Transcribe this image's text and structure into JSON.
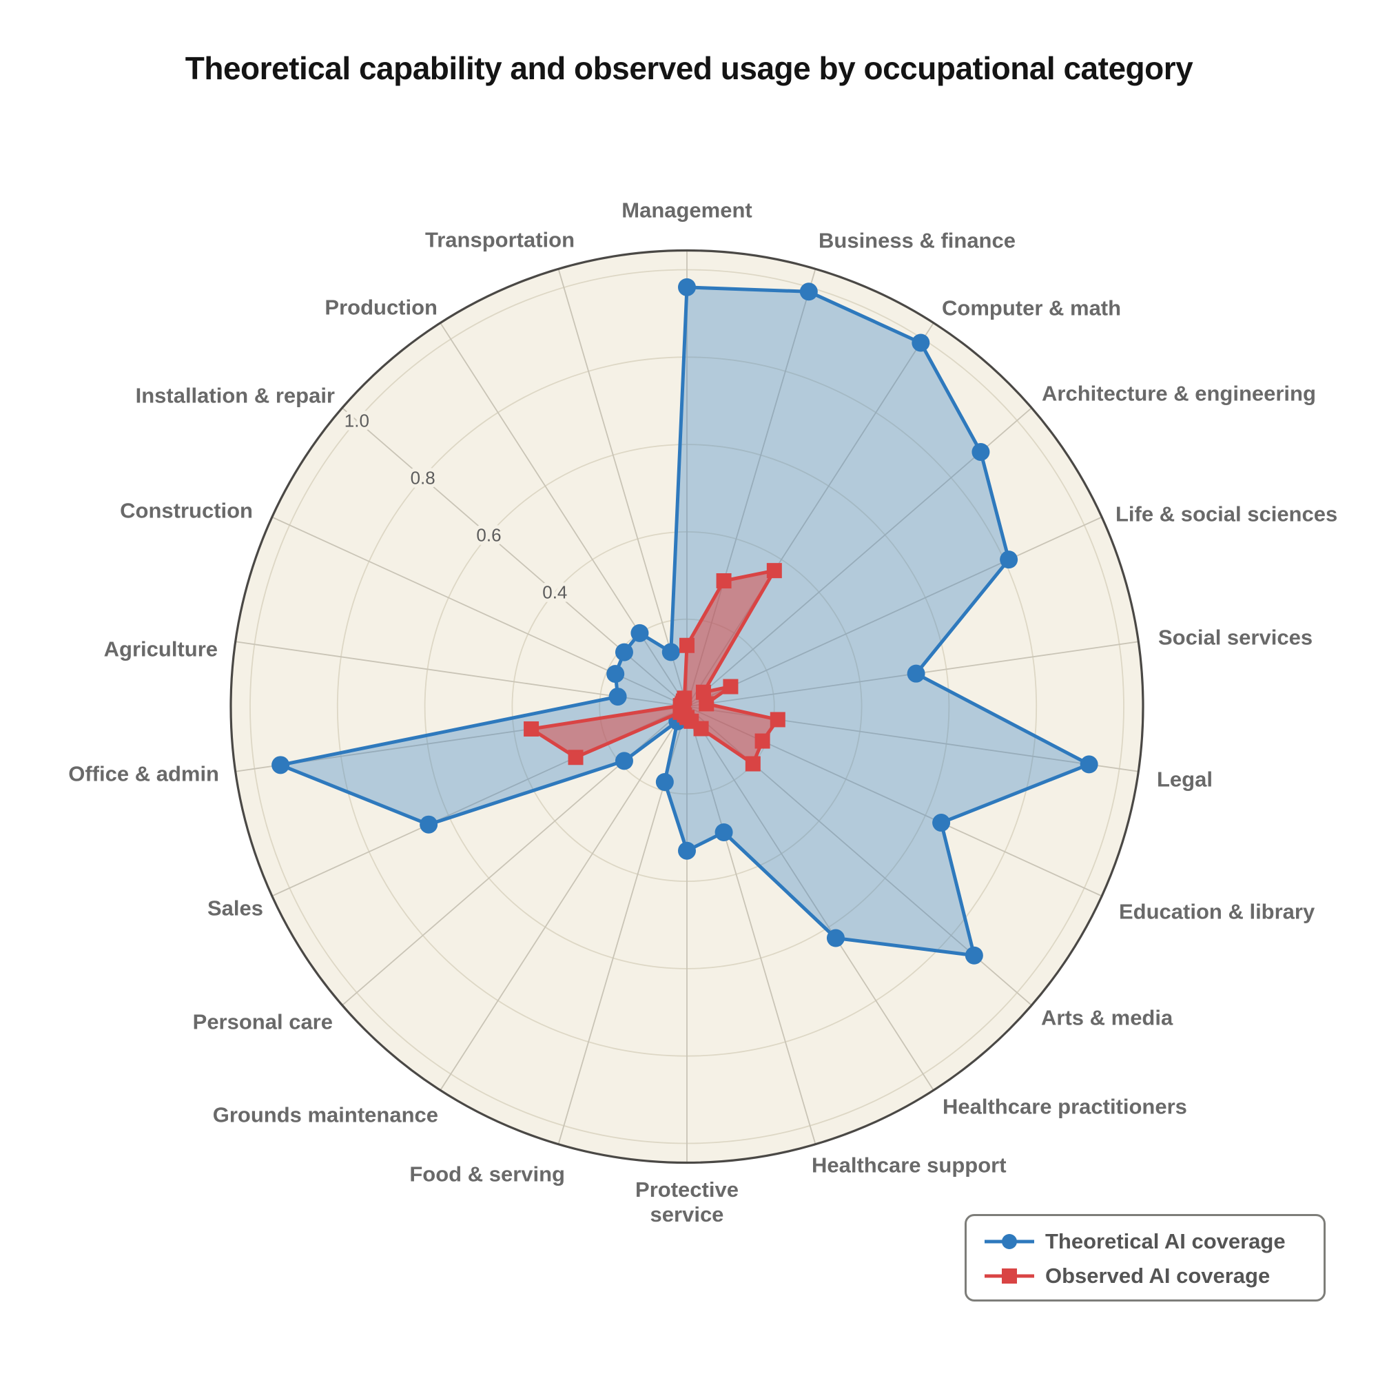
{
  "title": "Theoretical capability and observed usage by occupational category",
  "chart_data": {
    "type": "radar",
    "categories": [
      "Management",
      "Business & finance",
      "Computer & math",
      "Architecture & engineering",
      "Life & social sciences",
      "Social services",
      "Legal",
      "Education & library",
      "Arts & media",
      "Healthcare practitioners",
      "Healthcare support",
      "Protective\nservice",
      "Food & serving",
      "Grounds maintenance",
      "Personal care",
      "Sales",
      "Office & admin",
      "Agriculture",
      "Construction",
      "Installation & repair",
      "Production",
      "Transportation"
    ],
    "series": [
      {
        "name": "Theoretical AI coverage",
        "marker": "circle",
        "color": "#2e79bd",
        "fill": "rgba(58,128,195,0.35)",
        "values": [
          0.96,
          0.99,
          0.99,
          0.89,
          0.81,
          0.53,
          0.93,
          0.64,
          0.87,
          0.63,
          0.3,
          0.33,
          0.18,
          0.04,
          0.19,
          0.65,
          0.94,
          0.16,
          0.18,
          0.19,
          0.2,
          0.13
        ]
      },
      {
        "name": "Observed AI coverage",
        "marker": "square",
        "color": "#d94444",
        "fill": "rgba(219,68,63,0.50)",
        "values": [
          0.14,
          0.3,
          0.37,
          0.05,
          0.11,
          0.045,
          0.21,
          0.19,
          0.2,
          0.06,
          0.035,
          0.025,
          0.02,
          0.015,
          0.02,
          0.28,
          0.36,
          0.015,
          0.012,
          0.012,
          0.015,
          0.02
        ]
      }
    ],
    "rmin": 0,
    "rmax": 1.045,
    "grid_values": [
      0.2,
      0.4,
      0.6,
      0.8,
      1.0
    ],
    "radial_ticks": [
      0.4,
      0.6,
      0.8,
      1.0
    ],
    "radial_tick_labels": [
      "0.4",
      "0.6",
      "0.8",
      "1.0"
    ],
    "grid_on": true,
    "legend_position": "bottom-right",
    "colors": {
      "plot_background": "#f5f1e6",
      "page_background": "#ffffff",
      "grid_circle": "#ddd7c5",
      "spoke": "#c9c4b6",
      "outer_edge": "#4a4845",
      "category_label": "#696969",
      "tick_label": "#5c5c5c",
      "title": "#141414",
      "legend_text": "#545454"
    }
  }
}
